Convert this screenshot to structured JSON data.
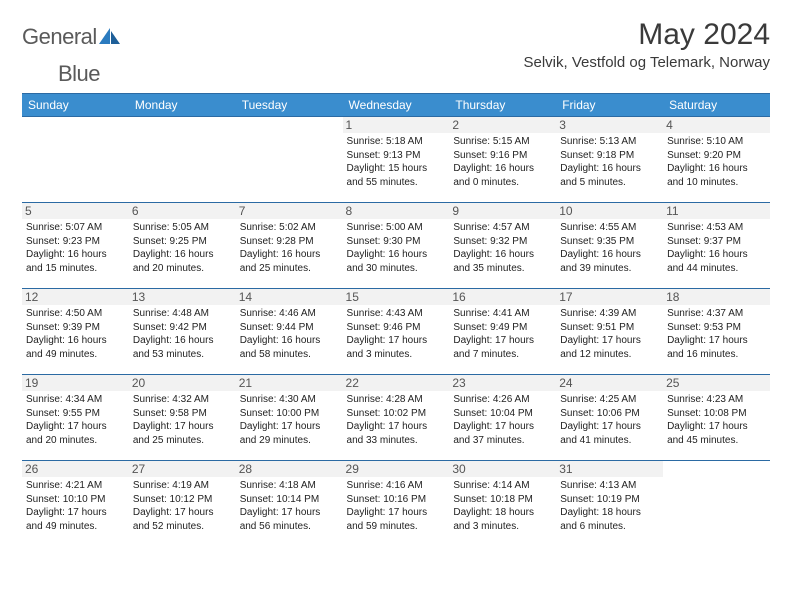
{
  "brand": {
    "word1": "General",
    "word2": "Blue"
  },
  "title": "May 2024",
  "location": "Selvik, Vestfold og Telemark, Norway",
  "colors": {
    "header_bg": "#3a8dce",
    "header_text": "#ffffff",
    "border": "#2b6aa3",
    "daynum_bg": "#f2f2f2",
    "text": "#222222",
    "brand_gray": "#5a5a5a",
    "brand_blue": "#2b7bbf"
  },
  "weekdays": [
    "Sunday",
    "Monday",
    "Tuesday",
    "Wednesday",
    "Thursday",
    "Friday",
    "Saturday"
  ],
  "weeks": [
    [
      {
        "day": "",
        "sunrise": "",
        "sunset": "",
        "daylight": ""
      },
      {
        "day": "",
        "sunrise": "",
        "sunset": "",
        "daylight": ""
      },
      {
        "day": "",
        "sunrise": "",
        "sunset": "",
        "daylight": ""
      },
      {
        "day": "1",
        "sunrise": "Sunrise: 5:18 AM",
        "sunset": "Sunset: 9:13 PM",
        "daylight": "Daylight: 15 hours and 55 minutes."
      },
      {
        "day": "2",
        "sunrise": "Sunrise: 5:15 AM",
        "sunset": "Sunset: 9:16 PM",
        "daylight": "Daylight: 16 hours and 0 minutes."
      },
      {
        "day": "3",
        "sunrise": "Sunrise: 5:13 AM",
        "sunset": "Sunset: 9:18 PM",
        "daylight": "Daylight: 16 hours and 5 minutes."
      },
      {
        "day": "4",
        "sunrise": "Sunrise: 5:10 AM",
        "sunset": "Sunset: 9:20 PM",
        "daylight": "Daylight: 16 hours and 10 minutes."
      }
    ],
    [
      {
        "day": "5",
        "sunrise": "Sunrise: 5:07 AM",
        "sunset": "Sunset: 9:23 PM",
        "daylight": "Daylight: 16 hours and 15 minutes."
      },
      {
        "day": "6",
        "sunrise": "Sunrise: 5:05 AM",
        "sunset": "Sunset: 9:25 PM",
        "daylight": "Daylight: 16 hours and 20 minutes."
      },
      {
        "day": "7",
        "sunrise": "Sunrise: 5:02 AM",
        "sunset": "Sunset: 9:28 PM",
        "daylight": "Daylight: 16 hours and 25 minutes."
      },
      {
        "day": "8",
        "sunrise": "Sunrise: 5:00 AM",
        "sunset": "Sunset: 9:30 PM",
        "daylight": "Daylight: 16 hours and 30 minutes."
      },
      {
        "day": "9",
        "sunrise": "Sunrise: 4:57 AM",
        "sunset": "Sunset: 9:32 PM",
        "daylight": "Daylight: 16 hours and 35 minutes."
      },
      {
        "day": "10",
        "sunrise": "Sunrise: 4:55 AM",
        "sunset": "Sunset: 9:35 PM",
        "daylight": "Daylight: 16 hours and 39 minutes."
      },
      {
        "day": "11",
        "sunrise": "Sunrise: 4:53 AM",
        "sunset": "Sunset: 9:37 PM",
        "daylight": "Daylight: 16 hours and 44 minutes."
      }
    ],
    [
      {
        "day": "12",
        "sunrise": "Sunrise: 4:50 AM",
        "sunset": "Sunset: 9:39 PM",
        "daylight": "Daylight: 16 hours and 49 minutes."
      },
      {
        "day": "13",
        "sunrise": "Sunrise: 4:48 AM",
        "sunset": "Sunset: 9:42 PM",
        "daylight": "Daylight: 16 hours and 53 minutes."
      },
      {
        "day": "14",
        "sunrise": "Sunrise: 4:46 AM",
        "sunset": "Sunset: 9:44 PM",
        "daylight": "Daylight: 16 hours and 58 minutes."
      },
      {
        "day": "15",
        "sunrise": "Sunrise: 4:43 AM",
        "sunset": "Sunset: 9:46 PM",
        "daylight": "Daylight: 17 hours and 3 minutes."
      },
      {
        "day": "16",
        "sunrise": "Sunrise: 4:41 AM",
        "sunset": "Sunset: 9:49 PM",
        "daylight": "Daylight: 17 hours and 7 minutes."
      },
      {
        "day": "17",
        "sunrise": "Sunrise: 4:39 AM",
        "sunset": "Sunset: 9:51 PM",
        "daylight": "Daylight: 17 hours and 12 minutes."
      },
      {
        "day": "18",
        "sunrise": "Sunrise: 4:37 AM",
        "sunset": "Sunset: 9:53 PM",
        "daylight": "Daylight: 17 hours and 16 minutes."
      }
    ],
    [
      {
        "day": "19",
        "sunrise": "Sunrise: 4:34 AM",
        "sunset": "Sunset: 9:55 PM",
        "daylight": "Daylight: 17 hours and 20 minutes."
      },
      {
        "day": "20",
        "sunrise": "Sunrise: 4:32 AM",
        "sunset": "Sunset: 9:58 PM",
        "daylight": "Daylight: 17 hours and 25 minutes."
      },
      {
        "day": "21",
        "sunrise": "Sunrise: 4:30 AM",
        "sunset": "Sunset: 10:00 PM",
        "daylight": "Daylight: 17 hours and 29 minutes."
      },
      {
        "day": "22",
        "sunrise": "Sunrise: 4:28 AM",
        "sunset": "Sunset: 10:02 PM",
        "daylight": "Daylight: 17 hours and 33 minutes."
      },
      {
        "day": "23",
        "sunrise": "Sunrise: 4:26 AM",
        "sunset": "Sunset: 10:04 PM",
        "daylight": "Daylight: 17 hours and 37 minutes."
      },
      {
        "day": "24",
        "sunrise": "Sunrise: 4:25 AM",
        "sunset": "Sunset: 10:06 PM",
        "daylight": "Daylight: 17 hours and 41 minutes."
      },
      {
        "day": "25",
        "sunrise": "Sunrise: 4:23 AM",
        "sunset": "Sunset: 10:08 PM",
        "daylight": "Daylight: 17 hours and 45 minutes."
      }
    ],
    [
      {
        "day": "26",
        "sunrise": "Sunrise: 4:21 AM",
        "sunset": "Sunset: 10:10 PM",
        "daylight": "Daylight: 17 hours and 49 minutes."
      },
      {
        "day": "27",
        "sunrise": "Sunrise: 4:19 AM",
        "sunset": "Sunset: 10:12 PM",
        "daylight": "Daylight: 17 hours and 52 minutes."
      },
      {
        "day": "28",
        "sunrise": "Sunrise: 4:18 AM",
        "sunset": "Sunset: 10:14 PM",
        "daylight": "Daylight: 17 hours and 56 minutes."
      },
      {
        "day": "29",
        "sunrise": "Sunrise: 4:16 AM",
        "sunset": "Sunset: 10:16 PM",
        "daylight": "Daylight: 17 hours and 59 minutes."
      },
      {
        "day": "30",
        "sunrise": "Sunrise: 4:14 AM",
        "sunset": "Sunset: 10:18 PM",
        "daylight": "Daylight: 18 hours and 3 minutes."
      },
      {
        "day": "31",
        "sunrise": "Sunrise: 4:13 AM",
        "sunset": "Sunset: 10:19 PM",
        "daylight": "Daylight: 18 hours and 6 minutes."
      },
      {
        "day": "",
        "sunrise": "",
        "sunset": "",
        "daylight": ""
      }
    ]
  ]
}
